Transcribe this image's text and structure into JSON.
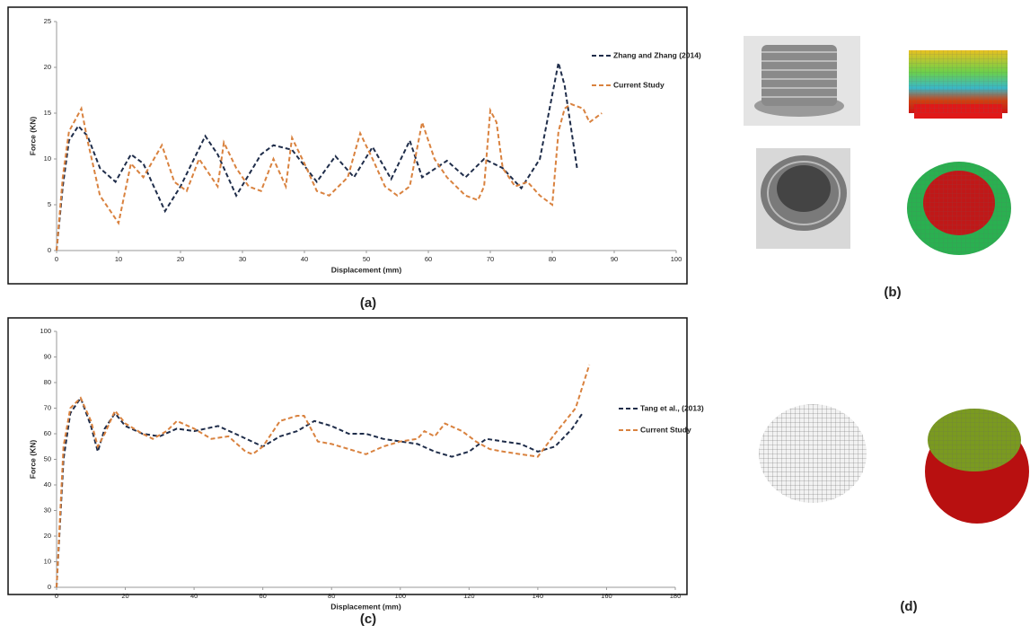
{
  "chart_data": [
    {
      "type": "line",
      "caption": "(a)",
      "x_label": "Displacement (mm)",
      "y_label": "Force (KN)",
      "xlim": [
        0,
        100
      ],
      "xticks": [
        0,
        10,
        20,
        30,
        40,
        50,
        60,
        70,
        80,
        90,
        100
      ],
      "ylim": [
        0,
        25
      ],
      "yticks": [
        0,
        5,
        10,
        15,
        20,
        25
      ],
      "grid": false,
      "legend": "upper right",
      "series": [
        {
          "name": "Zhang and Zhang (2014)",
          "color": "#1f2d4a",
          "x": [
            0,
            1,
            2,
            3.5,
            5,
            7,
            9.5,
            12,
            14,
            17.5,
            20,
            24,
            26,
            29,
            33,
            35,
            38,
            42,
            45,
            48,
            51,
            54,
            57,
            59,
            63,
            66,
            69,
            72,
            75,
            78,
            81,
            82,
            84
          ],
          "values": [
            0,
            7,
            12,
            13.6,
            12.5,
            9,
            7.5,
            10.5,
            9.5,
            4.3,
            7,
            12.5,
            10.5,
            6,
            10.5,
            11.5,
            11,
            7.5,
            10.3,
            8,
            11.3,
            7.8,
            12,
            8,
            9.8,
            8,
            10,
            9,
            6.8,
            10,
            20.5,
            18,
            9
          ]
        },
        {
          "name": "Current Study",
          "color": "#d9823f",
          "x": [
            0,
            1,
            2,
            4,
            5,
            7,
            10,
            12,
            14,
            17,
            19,
            21,
            23,
            25,
            26,
            27,
            29,
            31,
            33,
            35,
            37,
            38,
            40,
            42,
            44,
            47,
            49,
            51,
            53,
            55,
            57,
            59,
            61,
            63,
            66,
            68,
            69,
            70,
            71,
            72,
            74,
            76,
            78,
            80,
            81,
            82,
            83,
            85,
            86,
            87,
            88
          ],
          "values": [
            0,
            8,
            13,
            15.5,
            12,
            6,
            3,
            9.5,
            8,
            11.5,
            7.5,
            6.5,
            10,
            8,
            7,
            11.8,
            9,
            7,
            6.5,
            10,
            7,
            12.3,
            9.5,
            6.5,
            6,
            8,
            12.8,
            10,
            7,
            6,
            7,
            14,
            10,
            8,
            6,
            5.5,
            7,
            15.3,
            14,
            9,
            7,
            7.5,
            6,
            5,
            13,
            15.5,
            16,
            15.5,
            14,
            14.5,
            15
          ]
        }
      ]
    },
    {
      "type": "line",
      "caption": "(c)",
      "x_label": "Displacement (mm)",
      "y_label": "Force (KN)",
      "xlim": [
        0,
        180
      ],
      "xticks": [
        0,
        20,
        40,
        60,
        80,
        100,
        120,
        140,
        160,
        180
      ],
      "ylim": [
        0,
        100
      ],
      "yticks": [
        0,
        10,
        20,
        30,
        40,
        50,
        60,
        70,
        80,
        90,
        100
      ],
      "grid": false,
      "legend": "center right",
      "series": [
        {
          "name": "Tang et al., (2013)",
          "color": "#1f2d4a",
          "x": [
            0,
            2,
            4,
            7,
            10,
            12,
            14,
            17,
            20,
            25,
            30,
            35,
            40,
            47,
            52,
            60,
            65,
            70,
            75,
            80,
            85,
            90,
            95,
            100,
            105,
            110,
            115,
            120,
            125,
            130,
            135,
            140,
            145,
            150,
            153
          ],
          "values": [
            0,
            50,
            68,
            74,
            63,
            53,
            62,
            68,
            63,
            60,
            59,
            62,
            61,
            63,
            60,
            55,
            59,
            61,
            65,
            63,
            60,
            60,
            58,
            57,
            56,
            53,
            51,
            53,
            58,
            57,
            56,
            53,
            55,
            62,
            68
          ]
        },
        {
          "name": "Current Study",
          "color": "#d9823f",
          "x": [
            0,
            2,
            4,
            7,
            10,
            12,
            14,
            17,
            20,
            25,
            28,
            32,
            35,
            40,
            45,
            50,
            55,
            57,
            60,
            65,
            70,
            72,
            76,
            80,
            85,
            90,
            95,
            100,
            105,
            107,
            110,
            113,
            118,
            122,
            126,
            130,
            135,
            140,
            145,
            148,
            151,
            155
          ],
          "values": [
            0,
            55,
            70,
            74,
            65,
            55,
            60,
            69,
            64,
            60,
            58,
            61,
            65,
            62,
            58,
            59,
            53,
            52,
            55,
            65,
            67,
            67,
            57,
            56,
            54,
            52,
            55,
            57,
            58,
            61,
            59,
            64,
            61,
            57,
            54,
            53,
            52,
            51,
            60,
            65,
            70,
            87
          ]
        }
      ]
    }
  ],
  "panels": {
    "b": "(b)",
    "d": "(d)"
  }
}
